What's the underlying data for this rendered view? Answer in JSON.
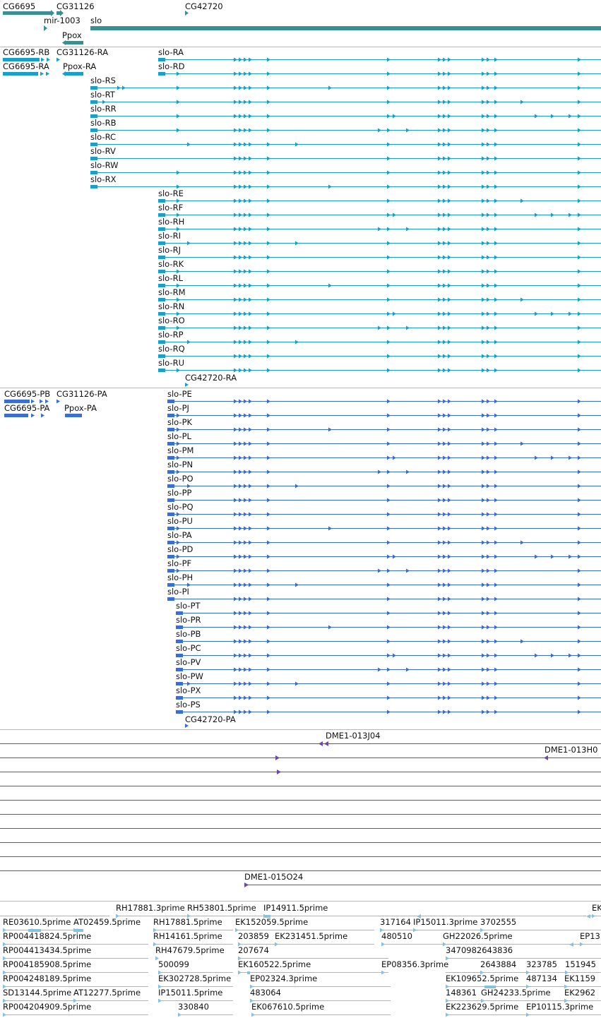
{
  "colors": {
    "gene": "#3b8f93",
    "transcript": "#1aa0c8",
    "protein": "#3a6fd0",
    "clone": "#6a4aa3",
    "est": "#86c2e0",
    "separator": "#b8b8b8"
  },
  "gene_track": {
    "features": [
      {
        "label": "CG6695"
      },
      {
        "label": "CG31126"
      },
      {
        "label": "CG42720"
      },
      {
        "label": "mir-1003"
      },
      {
        "label": "slo"
      },
      {
        "label": "Ppox"
      }
    ]
  },
  "transcript_track": {
    "small_labels": [
      "CG6695-RB",
      "CG31126-RA",
      "CG6695-RA",
      "Ppox-RA"
    ],
    "slo_labels": [
      "slo-RA",
      "slo-RD",
      "slo-RS",
      "slo-RT",
      "slo-RR",
      "slo-RB",
      "slo-RC",
      "slo-RV",
      "slo-RW",
      "slo-RX",
      "slo-RE",
      "slo-RF",
      "slo-RH",
      "slo-RI",
      "slo-RJ",
      "slo-RK",
      "slo-RL",
      "slo-RM",
      "slo-RN",
      "slo-RO",
      "slo-RP",
      "slo-RQ",
      "slo-RU"
    ],
    "trailing_label": "CG42720-RA"
  },
  "protein_track": {
    "small_labels": [
      "CG6695-PB",
      "CG31126-PA",
      "CG6695-PA",
      "Ppox-PA"
    ],
    "slo_labels": [
      "slo-PE",
      "slo-PJ",
      "slo-PK",
      "slo-PL",
      "slo-PM",
      "slo-PN",
      "slo-PO",
      "slo-PP",
      "slo-PQ",
      "slo-PU",
      "slo-PA",
      "slo-PD",
      "slo-PF",
      "slo-PH",
      "slo-PI",
      "slo-PT",
      "slo-PR",
      "slo-PB",
      "slo-PC",
      "slo-PV",
      "slo-PW",
      "slo-PX",
      "slo-PS"
    ],
    "trailing_label": "CG42720-PA"
  },
  "clone_track": {
    "labels": [
      "DME1-013J04",
      "DME1-013H0",
      "DME1-015O24"
    ]
  },
  "est_track": {
    "rows": [
      [
        "RH17881.3prime",
        "RH53801.5prime",
        "IP14911.5prime",
        "EK"
      ],
      [
        "RE03610.5prime",
        "AT02459.5prime",
        "RH17881.5prime",
        "EK152059.5prime",
        "317164",
        "IP15011.3prime",
        "3702555"
      ],
      [
        "RP004418824.5prime",
        "RH14161.5prime",
        "203859",
        "EK231451.5prime",
        "480510",
        "GH22026.5prime",
        "EP13"
      ],
      [
        "RP004413434.5prime",
        "RH47679.5prime",
        "207674",
        "3470982643836"
      ],
      [
        "RP004185908.5prime",
        "500099",
        "EK160522.5prime",
        "EP08356.3prime",
        "2643884",
        "323785",
        "151945"
      ],
      [
        "RP004248189.5prime",
        "EK302728.5prime",
        "EP02324.3prime",
        "EK109652.5prime",
        "487134",
        "EK1159"
      ],
      [
        "SD13144.5prime",
        "AT12277.5prime",
        "IP15011.5prime",
        "483064",
        "148361",
        "GH24233.5prime",
        "EK2962"
      ],
      [
        "RP004204909.5prime",
        "330840",
        "EK067610.5prime",
        "EK223629.5prime",
        "EP10115.3prime"
      ]
    ]
  }
}
